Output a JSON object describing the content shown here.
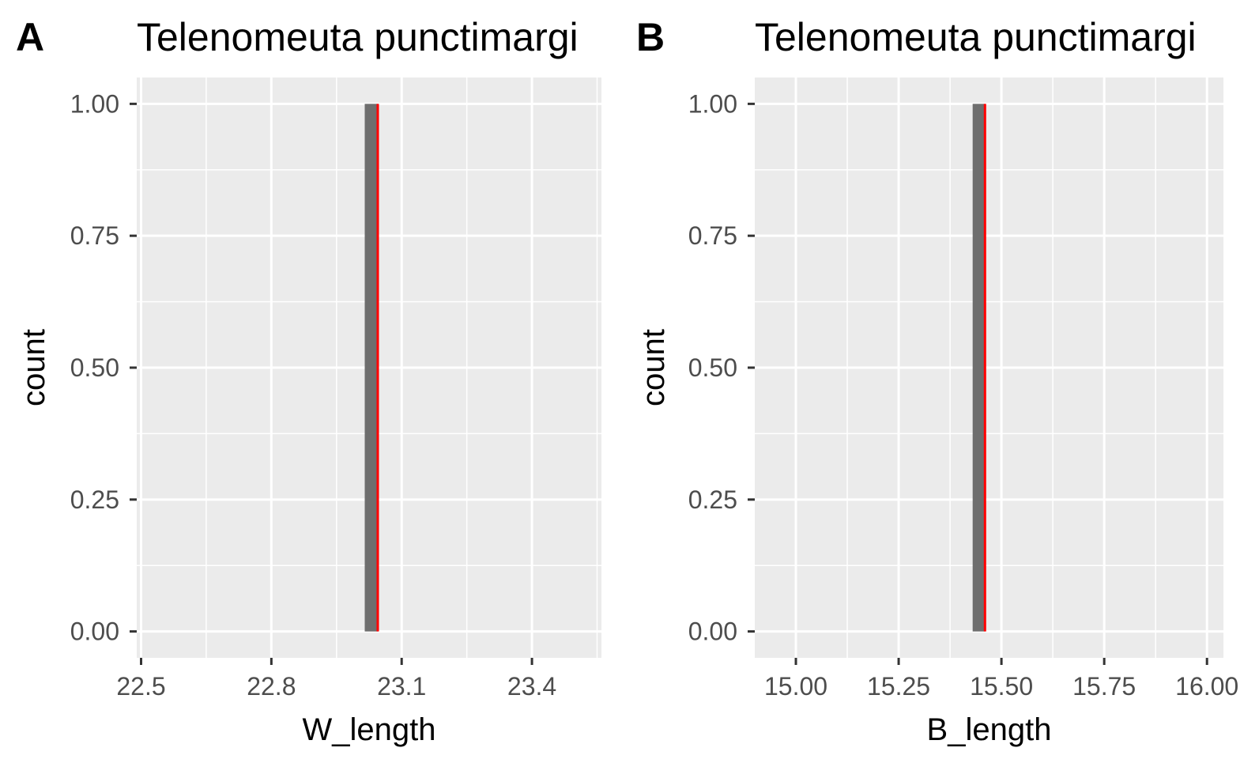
{
  "chart_data": [
    {
      "type": "bar",
      "panel_tag": "A",
      "title": "Telenomeuta punctimargi",
      "xlabel": "W_length",
      "ylabel": "count",
      "xlim": [
        22.49,
        23.56
      ],
      "ylim": [
        -0.05,
        1.05
      ],
      "x_ticks": [
        {
          "value": 22.5,
          "label": "22.5"
        },
        {
          "value": 22.8,
          "label": "22.8"
        },
        {
          "value": 23.1,
          "label": "23.1"
        },
        {
          "value": 23.4,
          "label": "23.4"
        }
      ],
      "x_minor": [
        22.65,
        22.95,
        23.25,
        23.55
      ],
      "y_ticks": [
        {
          "value": 0.0,
          "label": "0.00"
        },
        {
          "value": 0.25,
          "label": "0.25"
        },
        {
          "value": 0.5,
          "label": "0.50"
        },
        {
          "value": 0.75,
          "label": "0.75"
        },
        {
          "value": 1.0,
          "label": "1.00"
        }
      ],
      "bars": [
        {
          "xmin": 23.015,
          "xmax": 23.045,
          "count": 1
        }
      ],
      "vline": {
        "x": 23.045,
        "color": "#ff0000"
      },
      "grid": true,
      "colors": {
        "bar": "#6e6e6e",
        "panel": "#ebebeb",
        "grid": "#ffffff",
        "vline": "#ff0000"
      }
    },
    {
      "type": "bar",
      "panel_tag": "B",
      "title": "Telenomeuta punctimargi",
      "xlabel": "B_length",
      "ylabel": "count",
      "xlim": [
        14.9,
        16.04
      ],
      "ylim": [
        -0.05,
        1.05
      ],
      "x_ticks": [
        {
          "value": 15.0,
          "label": "15.00"
        },
        {
          "value": 15.25,
          "label": "15.25"
        },
        {
          "value": 15.5,
          "label": "15.50"
        },
        {
          "value": 15.75,
          "label": "15.75"
        },
        {
          "value": 16.0,
          "label": "16.00"
        }
      ],
      "x_minor": [
        15.125,
        15.375,
        15.625,
        15.875
      ],
      "y_ticks": [
        {
          "value": 0.0,
          "label": "0.00"
        },
        {
          "value": 0.25,
          "label": "0.25"
        },
        {
          "value": 0.5,
          "label": "0.50"
        },
        {
          "value": 0.75,
          "label": "0.75"
        },
        {
          "value": 1.0,
          "label": "1.00"
        }
      ],
      "bars": [
        {
          "xmin": 15.43,
          "xmax": 15.46,
          "count": 1
        }
      ],
      "vline": {
        "x": 15.46,
        "color": "#ff0000"
      },
      "grid": true,
      "colors": {
        "bar": "#6e6e6e",
        "panel": "#ebebeb",
        "grid": "#ffffff",
        "vline": "#ff0000"
      }
    }
  ]
}
